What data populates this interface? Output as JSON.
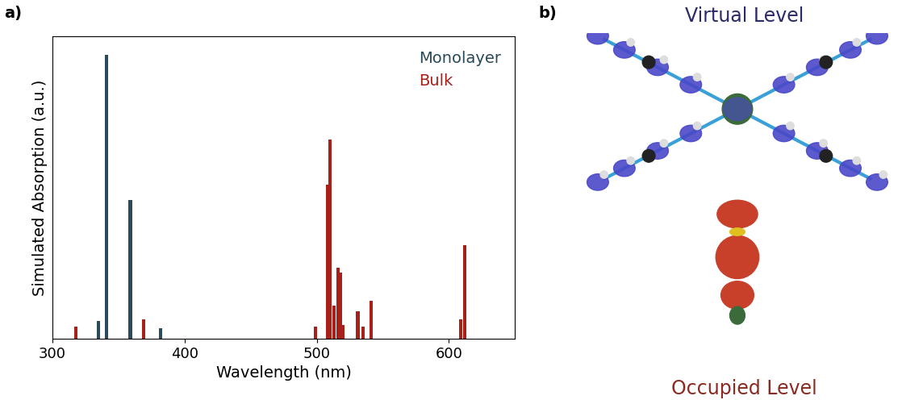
{
  "chart_data": {
    "type": "bar",
    "x_label": "Wavelength (nm)",
    "y_label": "Simulated Absorption (a.u.)",
    "xlim": [
      300,
      650
    ],
    "xticks": [
      300,
      400,
      500,
      600
    ],
    "ylim": [
      0,
      1
    ],
    "yticks": [],
    "tick_labels": "x",
    "legend": "upper right",
    "series": [
      {
        "name": "Monolayer",
        "color": "#2b4a5c",
        "x": [
          335,
          341,
          359,
          382
        ],
        "values": [
          0.06,
          0.94,
          0.46,
          0.035
        ]
      },
      {
        "name": "Bulk",
        "color": "#a8201a",
        "x": [
          318,
          369,
          499,
          508,
          510,
          513,
          516,
          518,
          520,
          531,
          535,
          541,
          609,
          612
        ],
        "values": [
          0.04,
          0.065,
          0.04,
          0.51,
          0.66,
          0.11,
          0.235,
          0.22,
          0.045,
          0.09,
          0.04,
          0.125,
          0.065,
          0.31
        ]
      }
    ]
  },
  "panel_labels": [
    "a)",
    "b)"
  ],
  "diagram": {
    "virtual_level": "Virtual Level",
    "occupied_level": "Occupied Level"
  }
}
